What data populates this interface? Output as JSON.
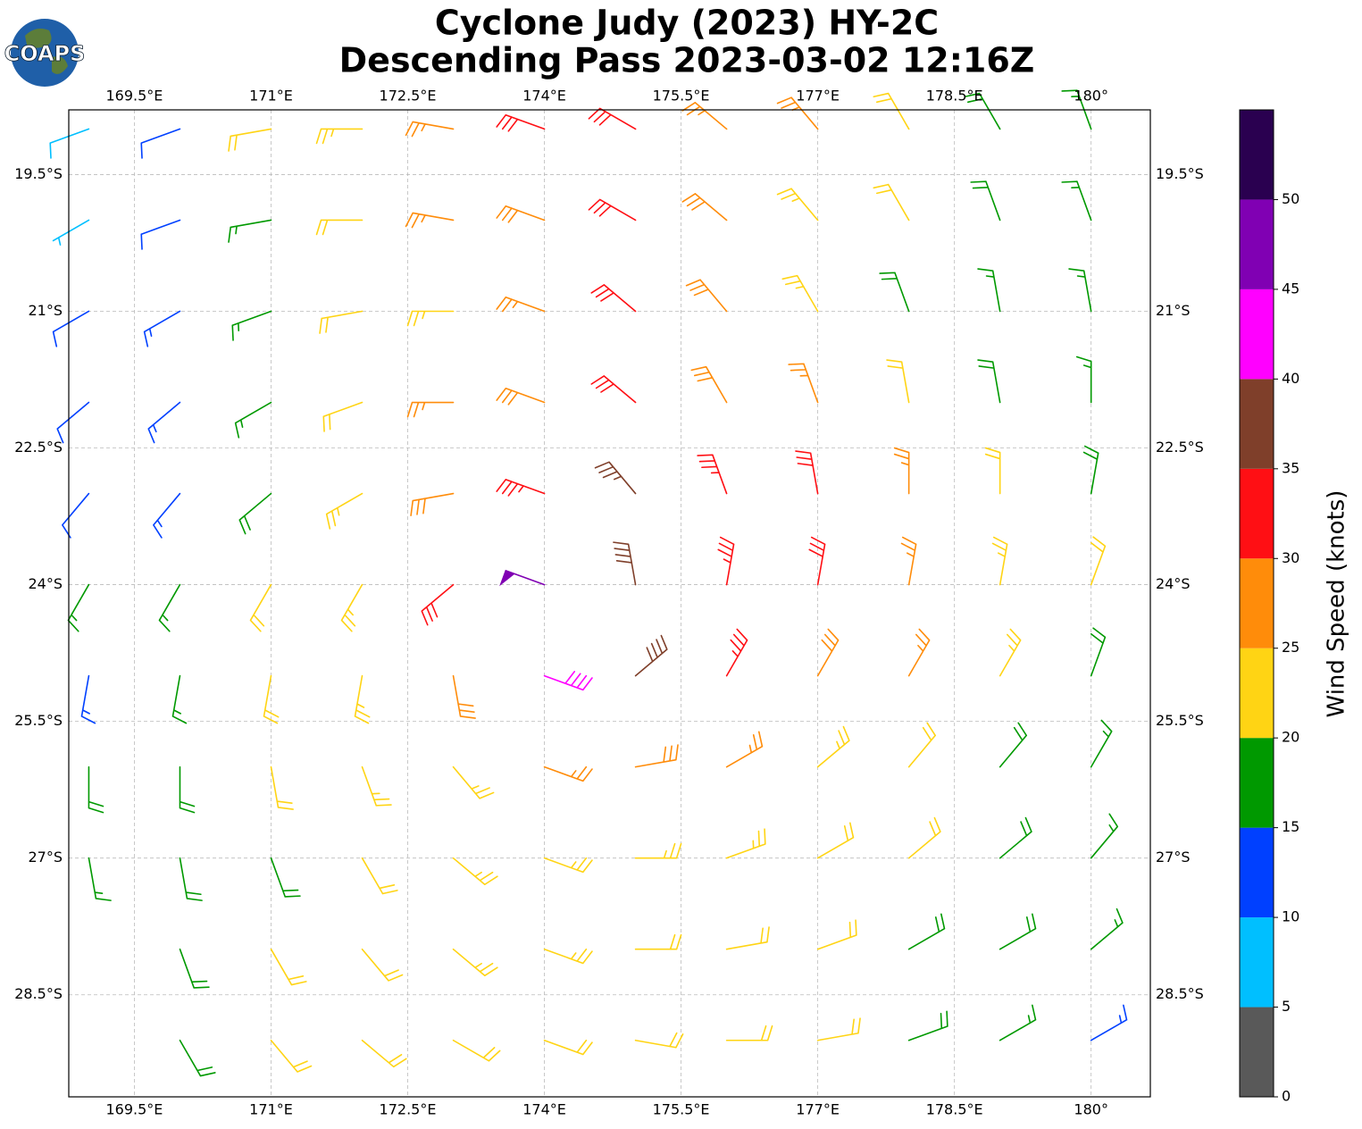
{
  "map": {
    "logo": "COAPS",
    "title": "Cyclone Judy (2023) HY-2C",
    "subtitle": "Descending Pass 2023-03-02 12:16Z",
    "xlim": [
      168.78,
      180.65
    ],
    "ylim": [
      -29.62,
      -18.79
    ],
    "xticks": [
      {
        "value": 169.5,
        "label": "169.5°E"
      },
      {
        "value": 171,
        "label": "171°E"
      },
      {
        "value": 172.5,
        "label": "172.5°E"
      },
      {
        "value": 174,
        "label": "174°E"
      },
      {
        "value": 175.5,
        "label": "175.5°E"
      },
      {
        "value": 177,
        "label": "177°E"
      },
      {
        "value": 178.5,
        "label": "178.5°E"
      },
      {
        "value": 180,
        "label": "180°"
      }
    ],
    "yticks": [
      {
        "value": -19.5,
        "label": "19.5°S"
      },
      {
        "value": -21,
        "label": "21°S"
      },
      {
        "value": -22.5,
        "label": "22.5°S"
      },
      {
        "value": -24,
        "label": "24°S"
      },
      {
        "value": -25.5,
        "label": "25.5°S"
      },
      {
        "value": -27,
        "label": "27°S"
      },
      {
        "value": -28.5,
        "label": "28.5°S"
      }
    ],
    "grid": true,
    "lons": [
      169,
      170,
      171,
      172,
      173,
      174,
      175,
      176,
      177,
      178,
      179,
      180
    ],
    "lats": [
      -19,
      -20,
      -21,
      -22,
      -23,
      -24,
      -25,
      -26,
      -27,
      -28,
      -29
    ],
    "speed": [
      [
        8,
        12,
        20,
        24,
        27,
        31,
        30,
        27,
        25,
        22,
        18,
        15
      ],
      [
        7,
        12,
        15,
        22,
        26,
        28,
        32,
        28,
        24,
        20,
        18,
        16
      ],
      [
        11,
        13,
        17,
        22,
        24,
        27,
        31,
        28,
        24,
        19,
        17,
        15
      ],
      [
        12,
        13,
        16,
        21,
        26,
        29,
        32,
        29,
        26,
        22,
        18,
        16
      ],
      [
        12,
        14,
        18,
        23,
        28,
        33,
        37,
        34,
        31,
        27,
        22,
        18
      ],
      [
        16,
        17,
        21,
        24,
        32,
        48,
        38,
        33,
        31,
        27,
        24,
        22
      ],
      [
        14,
        17,
        22,
        24,
        28,
        42,
        38,
        33,
        29,
        26,
        23,
        19
      ],
      [
        18,
        18,
        21,
        23,
        24,
        27,
        28,
        25,
        24,
        22,
        19,
        17
      ],
      [
        17,
        18,
        19,
        22,
        23,
        24,
        24,
        23,
        22,
        20,
        18,
        17
      ],
      [
        null,
        18,
        21,
        22,
        23,
        23,
        22,
        22,
        21,
        19,
        18,
        16
      ],
      [
        null,
        19,
        21,
        22,
        22,
        22,
        22,
        21,
        20,
        19,
        17,
        14
      ]
    ],
    "direction": [
      [
        250,
        250,
        260,
        270,
        280,
        290,
        300,
        310,
        320,
        330,
        330,
        340
      ],
      [
        240,
        250,
        260,
        270,
        280,
        290,
        300,
        310,
        320,
        330,
        340,
        340
      ],
      [
        240,
        240,
        250,
        260,
        270,
        290,
        310,
        320,
        330,
        340,
        350,
        350
      ],
      [
        230,
        230,
        240,
        250,
        270,
        290,
        310,
        330,
        340,
        350,
        350,
        360
      ],
      [
        220,
        220,
        230,
        240,
        260,
        290,
        320,
        340,
        350,
        360,
        0,
        10
      ],
      [
        210,
        210,
        210,
        210,
        230,
        290,
        350,
        10,
        10,
        10,
        10,
        20
      ],
      [
        190,
        190,
        190,
        190,
        170,
        110,
        50,
        30,
        30,
        30,
        30,
        20
      ],
      [
        180,
        180,
        170,
        160,
        140,
        110,
        80,
        60,
        50,
        40,
        40,
        30
      ],
      [
        170,
        170,
        160,
        150,
        130,
        110,
        90,
        70,
        60,
        50,
        50,
        40
      ],
      [
        null,
        160,
        150,
        140,
        130,
        110,
        90,
        80,
        70,
        60,
        60,
        50
      ],
      [
        null,
        150,
        140,
        130,
        120,
        110,
        100,
        90,
        80,
        70,
        60,
        60
      ]
    ],
    "colorbar": {
      "label": "Wind Speed (knots)",
      "clim": [
        0,
        55
      ],
      "bounds": [
        0,
        5,
        10,
        15,
        20,
        25,
        30,
        35,
        40,
        45,
        50,
        55
      ],
      "colors": [
        "#595959",
        "#00bfff",
        "#0040ff",
        "#009900",
        "#ffd414",
        "#ff8c0a",
        "#ff0f14",
        "#7f3f2a",
        "#ff00ff",
        "#8000b3",
        "#2a0050"
      ],
      "ticks": [
        0,
        5,
        10,
        15,
        20,
        25,
        30,
        35,
        40,
        45,
        50
      ]
    }
  }
}
